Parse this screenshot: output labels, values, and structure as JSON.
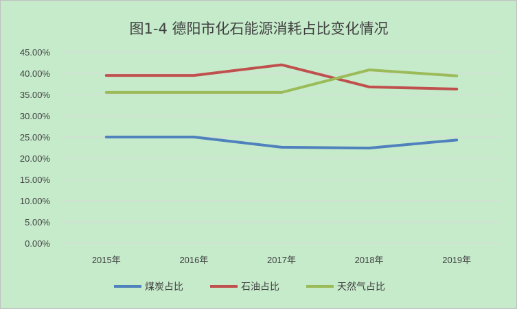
{
  "chart_data": {
    "type": "line",
    "title": "图1-4  德阳市化石能源消耗占比变化情况",
    "categories": [
      "2015年",
      "2016年",
      "2017年",
      "2018年",
      "2019年"
    ],
    "ylim": [
      0,
      45
    ],
    "yticks": [
      "0.00%",
      "5.00%",
      "10.00%",
      "15.00%",
      "20.00%",
      "25.00%",
      "30.00%",
      "35.00%",
      "40.00%",
      "45.00%"
    ],
    "grid": true,
    "legend_position": "bottom",
    "series": [
      {
        "name": "煤炭占比",
        "color": "#4f81bd",
        "values": [
          25.0,
          25.0,
          22.6,
          22.4,
          24.3
        ]
      },
      {
        "name": "石油占比",
        "color": "#c0504d",
        "values": [
          39.5,
          39.5,
          42.0,
          36.8,
          36.3
        ]
      },
      {
        "name": "天然气占比",
        "color": "#9bbb59",
        "values": [
          35.5,
          35.5,
          35.5,
          40.8,
          39.4
        ]
      }
    ]
  }
}
